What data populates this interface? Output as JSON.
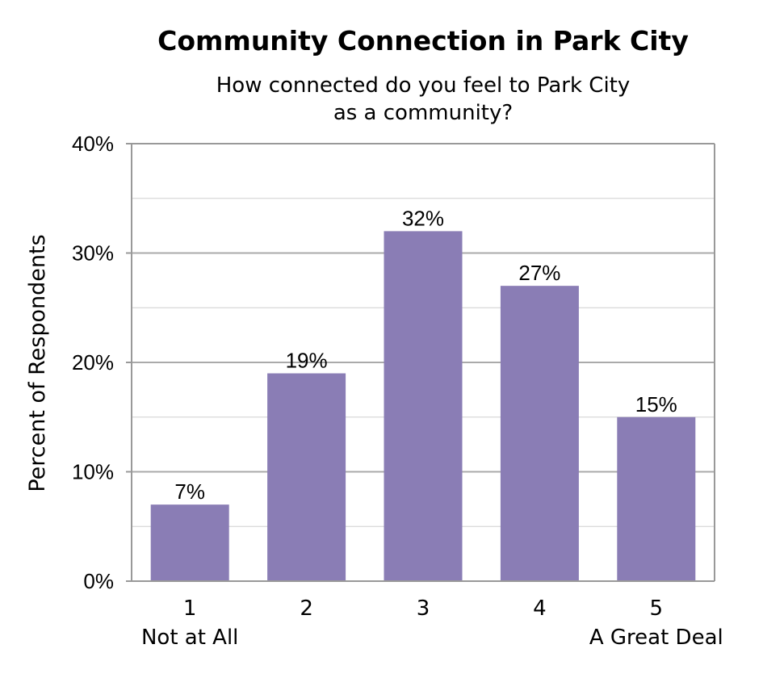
{
  "chart_data": {
    "type": "bar",
    "title": "Community Connection in Park City",
    "subtitle": [
      "How connected do you feel to Park City",
      "as a community?"
    ],
    "xlabel": "",
    "ylabel": "Percent of Respondents",
    "categories": [
      "1",
      "2",
      "3",
      "4",
      "5"
    ],
    "category_sublabels": [
      "Not at All",
      "",
      "",
      "",
      "A Great Deal"
    ],
    "values": [
      7,
      19,
      32,
      27,
      15
    ],
    "data_labels": [
      "7%",
      "19%",
      "32%",
      "27%",
      "15%"
    ],
    "ylim": [
      0,
      40
    ],
    "y_ticks": [
      0,
      10,
      20,
      30,
      40
    ],
    "y_tick_labels": [
      "0%",
      "10%",
      "20%",
      "30%",
      "40%"
    ],
    "minor_gridlines": [
      5,
      15,
      25,
      35
    ],
    "grid": true,
    "legend": "none",
    "bar_color": "#8a7db5",
    "gridline_color": "#aaaaaa",
    "axis_color": "#999999"
  }
}
